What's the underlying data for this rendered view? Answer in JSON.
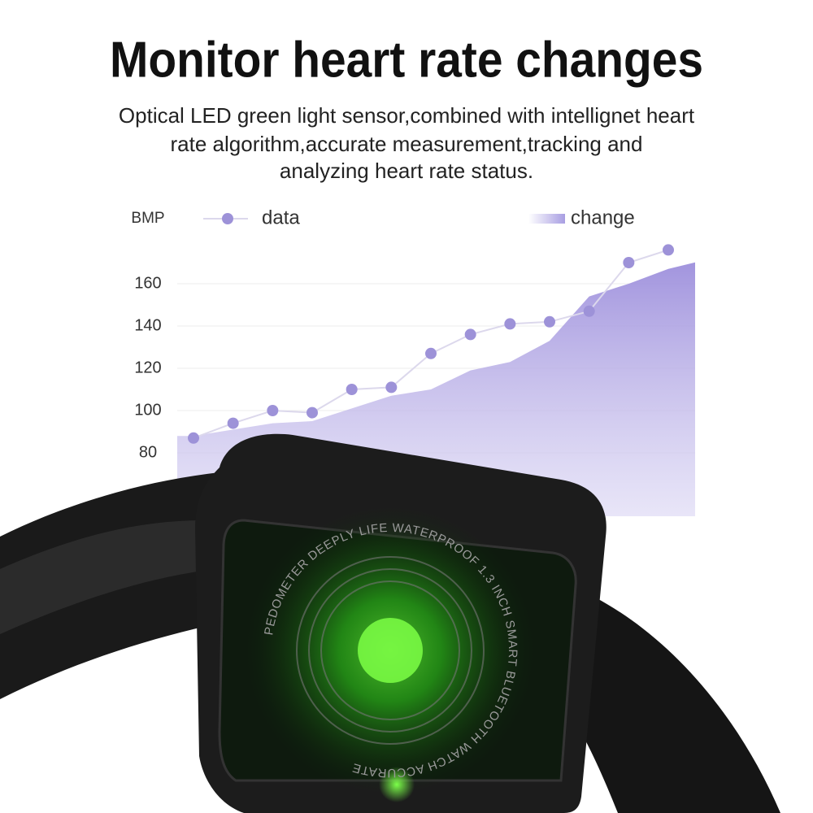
{
  "chart_data": {
    "type": "line",
    "title": "Monitor heart rate changes",
    "subtitle": [
      "Optical LED green light sensor,combined with intellignet heart",
      "rate algorithm,accurate measurement,tracking and",
      "analyzing heart rate status."
    ],
    "y_label": "BMP",
    "ylim": [
      50,
      180
    ],
    "yticks": [
      80,
      100,
      120,
      140,
      160
    ],
    "grid": true,
    "series": [
      {
        "name": "data",
        "color": "#9d92d8",
        "style": "line",
        "values": [
          87,
          94,
          100,
          99,
          110,
          111,
          127,
          136,
          141,
          142,
          147,
          170,
          176
        ]
      },
      {
        "name": "change",
        "color": "#a89ee2",
        "style": "area",
        "values": [
          88,
          91,
          94,
          95,
          101,
          107,
          110,
          119,
          123,
          133,
          154,
          160,
          167
        ]
      }
    ]
  },
  "device": {
    "engraving": "PEDOMETER DEEPLY LIFE WATERPROOF 1.3 INCH SMART BLUETOOTH WATCH ACCURATE"
  }
}
